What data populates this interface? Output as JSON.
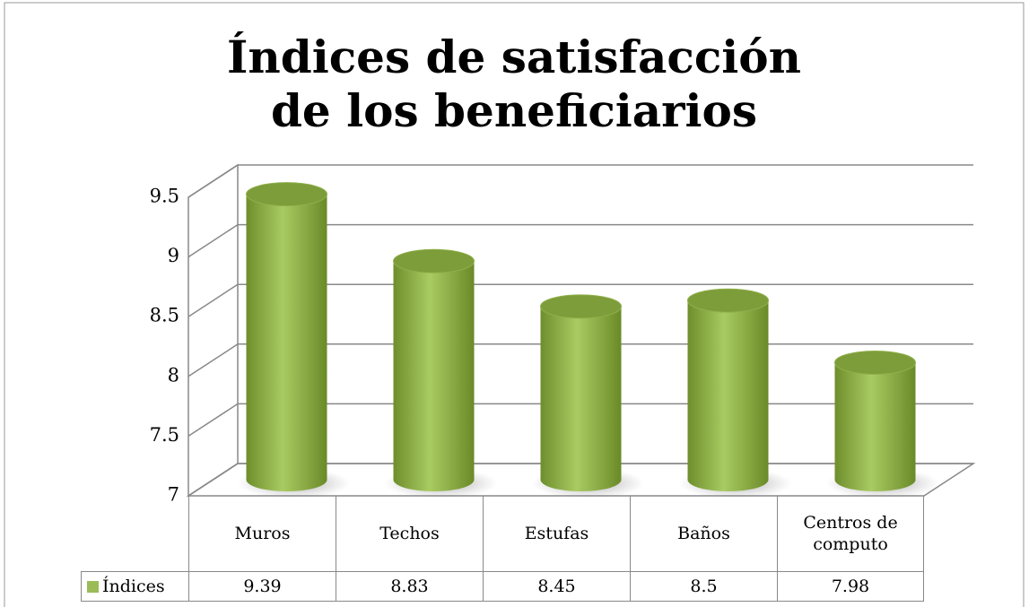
{
  "chart_data": {
    "type": "bar3d",
    "title": "Índices de satisfacción de los beneficiarios",
    "categories": [
      "Muros",
      "Techos",
      "Estufas",
      "Baños",
      "Centros de computo"
    ],
    "series": [
      {
        "name": "Índices",
        "color": "#9bbb59",
        "values": [
          9.39,
          8.83,
          8.45,
          8.5,
          7.98
        ]
      }
    ],
    "ylim": [
      7,
      9.5
    ],
    "yticks": [
      7,
      7.5,
      8,
      8.5,
      9,
      9.5
    ],
    "grid": true,
    "legend": "bottom"
  }
}
